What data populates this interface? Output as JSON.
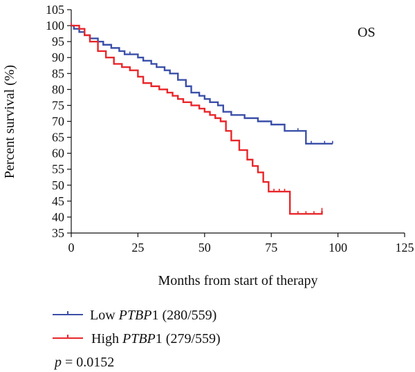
{
  "chart_data": {
    "type": "line",
    "annotation": "OS",
    "xlabel": "Months from start of therapy",
    "ylabel": "Percent survival (%)",
    "xlim": [
      0,
      125
    ],
    "ylim": [
      35,
      105
    ],
    "xticks": [
      0,
      25,
      50,
      75,
      100,
      125
    ],
    "yticks": [
      35,
      40,
      45,
      50,
      55,
      60,
      65,
      70,
      75,
      80,
      85,
      90,
      95,
      100,
      105
    ],
    "grid": false,
    "legend_position": "bottom-left",
    "series": [
      {
        "name_prefix": "Low ",
        "name_gene": "PTBP",
        "name_suffix": "1 (280/559)",
        "color": "#3a4fa8",
        "x": [
          0,
          1,
          3,
          5,
          7,
          10,
          12,
          15,
          18,
          20,
          22,
          25,
          27,
          30,
          32,
          35,
          37,
          40,
          43,
          45,
          48,
          50,
          52,
          55,
          57,
          60,
          65,
          70,
          75,
          80,
          85,
          88,
          90,
          95,
          98
        ],
        "y": [
          100,
          99,
          98,
          97,
          96,
          95,
          94,
          93,
          92,
          91,
          91,
          90,
          89,
          88,
          87,
          86,
          85,
          83,
          81,
          79,
          78,
          77,
          76,
          75,
          73,
          72,
          71,
          70,
          69,
          67,
          67,
          63,
          63,
          63,
          63
        ]
      },
      {
        "name_prefix": "High ",
        "name_gene": "PTBP",
        "name_suffix": "1 (279/559)",
        "color": "#e8262a",
        "x": [
          0,
          3,
          5,
          7,
          10,
          13,
          16,
          19,
          22,
          25,
          27,
          30,
          33,
          36,
          38,
          40,
          42,
          45,
          48,
          50,
          52,
          54,
          56,
          58,
          60,
          63,
          66,
          68,
          70,
          72,
          74,
          76,
          78,
          80,
          82,
          85,
          88,
          91,
          94
        ],
        "y": [
          100,
          99,
          97,
          95,
          92,
          90,
          88,
          87,
          86,
          84,
          82,
          81,
          80,
          79,
          78,
          77,
          76,
          75,
          74,
          73,
          72,
          71,
          70,
          67,
          64,
          61,
          58,
          56,
          54,
          51,
          48,
          48,
          48,
          48,
          41,
          41,
          41,
          41,
          42
        ]
      }
    ],
    "pvalue_label": "p",
    "pvalue_text": " = 0.0152"
  }
}
